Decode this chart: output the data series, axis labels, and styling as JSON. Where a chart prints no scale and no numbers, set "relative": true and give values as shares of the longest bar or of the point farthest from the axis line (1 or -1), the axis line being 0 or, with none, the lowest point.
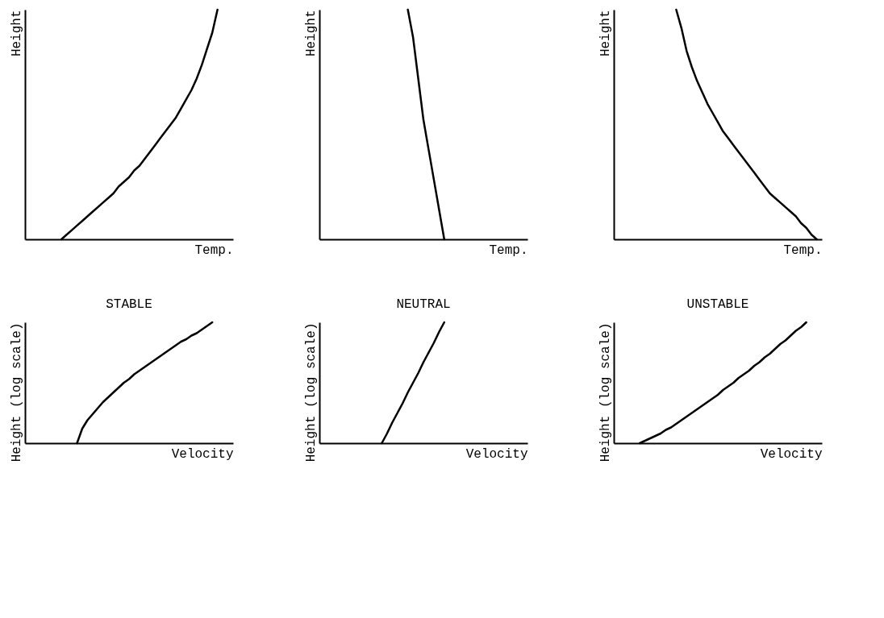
{
  "chart_data": [
    {
      "type": "line",
      "relative": true,
      "tick_labels": false,
      "xlabel": "Temp.",
      "ylabel": "Height",
      "categories": [
        null,
        null,
        null,
        null,
        null,
        null,
        null,
        null,
        null,
        null,
        null,
        null,
        null,
        null,
        null,
        null,
        null,
        null,
        null,
        null,
        null,
        null,
        null,
        null,
        null,
        null,
        null,
        null,
        null,
        null,
        null,
        null,
        null,
        null,
        null,
        null,
        null,
        null,
        null,
        null,
        null
      ],
      "series": [
        {
          "color": "#000000",
          "values": [
            null,
            null,
            null,
            null,
            null,
            null,
            null,
            0,
            0.02,
            0.04,
            0.06,
            0.08,
            0.1,
            0.12,
            0.14,
            0.16,
            0.18,
            0.2,
            0.23,
            0.25,
            0.27,
            0.3,
            0.32,
            0.35,
            0.38,
            0.41,
            0.44,
            0.47,
            0.5,
            0.53,
            0.57,
            0.61,
            0.65,
            0.7,
            0.76,
            0.83,
            0.9,
            1,
            null,
            null,
            null
          ]
        }
      ]
    },
    {
      "type": "line",
      "relative": true,
      "tick_labels": false,
      "xlabel": "Temp.",
      "ylabel": "Height",
      "categories": [
        null,
        null,
        null,
        null,
        null,
        null,
        null,
        null,
        null,
        null,
        null,
        null,
        null,
        null,
        null,
        null,
        null,
        null,
        null,
        null,
        null,
        null,
        null,
        null,
        null,
        null,
        null,
        null,
        null,
        null,
        null,
        null,
        null,
        null,
        null,
        null,
        null,
        null,
        null,
        null,
        null
      ],
      "series": [
        {
          "color": "#000000",
          "values": [
            null,
            null,
            null,
            null,
            null,
            null,
            null,
            null,
            null,
            null,
            null,
            null,
            null,
            null,
            null,
            null,
            null,
            1,
            0.88,
            0.7,
            0.52,
            0.39,
            0.26,
            0.13,
            0,
            null,
            null,
            null,
            null,
            null,
            null,
            null,
            null,
            null,
            null,
            null,
            null,
            null,
            null,
            null,
            null
          ]
        }
      ]
    },
    {
      "type": "line",
      "relative": true,
      "tick_labels": false,
      "xlabel": "Temp.",
      "ylabel": "Height",
      "categories": [
        null,
        null,
        null,
        null,
        null,
        null,
        null,
        null,
        null,
        null,
        null,
        null,
        null,
        null,
        null,
        null,
        null,
        null,
        null,
        null,
        null,
        null,
        null,
        null,
        null,
        null,
        null,
        null,
        null,
        null,
        null,
        null,
        null,
        null,
        null,
        null,
        null,
        null,
        null,
        null,
        null
      ],
      "series": [
        {
          "color": "#000000",
          "values": [
            null,
            null,
            null,
            null,
            null,
            null,
            null,
            null,
            null,
            null,
            null,
            null,
            1,
            0.92,
            0.82,
            0.75,
            0.69,
            0.64,
            0.59,
            0.55,
            0.51,
            0.47,
            0.44,
            0.41,
            0.38,
            0.35,
            0.32,
            0.29,
            0.26,
            0.23,
            0.2,
            0.18,
            0.16,
            0.14,
            0.12,
            0.1,
            0.07,
            0.05,
            0.02,
            0,
            null
          ]
        }
      ]
    },
    {
      "type": "line",
      "relative": true,
      "tick_labels": false,
      "title": "STABLE",
      "xlabel": "Velocity",
      "ylabel": "Height (log scale)",
      "categories": [
        null,
        null,
        null,
        null,
        null,
        null,
        null,
        null,
        null,
        null,
        null,
        null,
        null,
        null,
        null,
        null,
        null,
        null,
        null,
        null,
        null,
        null,
        null,
        null,
        null,
        null,
        null,
        null,
        null,
        null,
        null,
        null,
        null,
        null,
        null,
        null,
        null,
        null,
        null,
        null,
        null
      ],
      "series": [
        {
          "color": "#000000",
          "values": [
            null,
            null,
            null,
            null,
            null,
            null,
            null,
            null,
            null,
            null,
            0,
            0.12,
            0.19,
            0.24,
            0.29,
            0.34,
            0.38,
            0.42,
            0.46,
            0.5,
            0.53,
            0.57,
            0.6,
            0.63,
            0.66,
            0.69,
            0.72,
            0.75,
            0.78,
            0.81,
            0.84,
            0.86,
            0.89,
            0.91,
            0.94,
            0.97,
            1,
            null,
            null,
            null,
            null
          ]
        }
      ]
    },
    {
      "type": "line",
      "relative": true,
      "tick_labels": false,
      "title": "NEUTRAL",
      "xlabel": "Velocity",
      "ylabel": "Height (log scale)",
      "categories": [
        null,
        null,
        null,
        null,
        null,
        null,
        null,
        null,
        null,
        null,
        null,
        null,
        null,
        null,
        null,
        null,
        null,
        null,
        null,
        null,
        null,
        null,
        null,
        null,
        null,
        null,
        null,
        null,
        null,
        null,
        null,
        null,
        null,
        null,
        null,
        null,
        null,
        null,
        null,
        null,
        null
      ],
      "series": [
        {
          "color": "#000000",
          "values": [
            null,
            null,
            null,
            null,
            null,
            null,
            null,
            null,
            null,
            null,
            null,
            null,
            0,
            0.08,
            0.17,
            0.25,
            0.33,
            0.42,
            0.5,
            0.58,
            0.67,
            0.75,
            0.83,
            0.92,
            1,
            null,
            null,
            null,
            null,
            null,
            null,
            null,
            null,
            null,
            null,
            null,
            null,
            null,
            null,
            null,
            null
          ]
        }
      ]
    },
    {
      "type": "line",
      "relative": true,
      "tick_labels": false,
      "title": "UNSTABLE",
      "xlabel": "Velocity",
      "ylabel": "Height (log scale)",
      "categories": [
        null,
        null,
        null,
        null,
        null,
        null,
        null,
        null,
        null,
        null,
        null,
        null,
        null,
        null,
        null,
        null,
        null,
        null,
        null,
        null,
        null,
        null,
        null,
        null,
        null,
        null,
        null,
        null,
        null,
        null,
        null,
        null,
        null,
        null,
        null,
        null,
        null,
        null,
        null,
        null,
        null
      ],
      "series": [
        {
          "color": "#000000",
          "values": [
            null,
            null,
            null,
            null,
            null,
            0,
            0.02,
            0.04,
            0.06,
            0.08,
            0.11,
            0.13,
            0.16,
            0.19,
            0.22,
            0.25,
            0.28,
            0.31,
            0.34,
            0.37,
            0.4,
            0.44,
            0.47,
            0.5,
            0.54,
            0.57,
            0.6,
            0.64,
            0.67,
            0.71,
            0.74,
            0.78,
            0.82,
            0.85,
            0.89,
            0.93,
            0.96,
            1,
            null,
            null,
            null
          ]
        }
      ]
    }
  ]
}
